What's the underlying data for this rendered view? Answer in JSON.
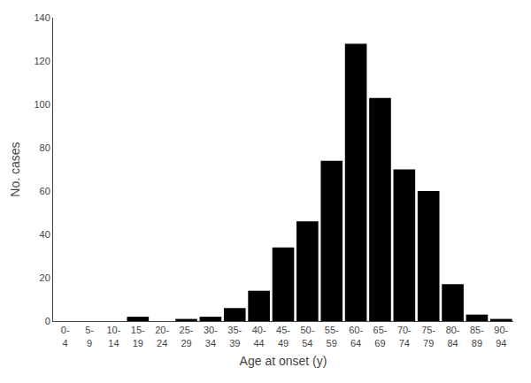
{
  "chart_data": {
    "type": "bar",
    "xlabel": "Age at onset (y)",
    "ylabel": "No. cases",
    "categories": [
      "0-\n4",
      "5-\n9",
      "10-\n14",
      "15-\n19",
      "20-\n24",
      "25-\n29",
      "30-\n34",
      "35-\n39",
      "40-\n44",
      "45-\n49",
      "50-\n54",
      "55-\n59",
      "60-\n64",
      "65-\n69",
      "70-\n74",
      "75-\n79",
      "80-\n84",
      "85-\n89",
      "90-\n94"
    ],
    "values": [
      0,
      0,
      0,
      2,
      0,
      1,
      2,
      6,
      14,
      34,
      46,
      74,
      128,
      103,
      70,
      60,
      17,
      3,
      1
    ],
    "color": "#000000",
    "ylim": [
      0,
      140
    ],
    "yticks": [
      0,
      20,
      40,
      60,
      80,
      100,
      120,
      140
    ],
    "grid": false
  }
}
